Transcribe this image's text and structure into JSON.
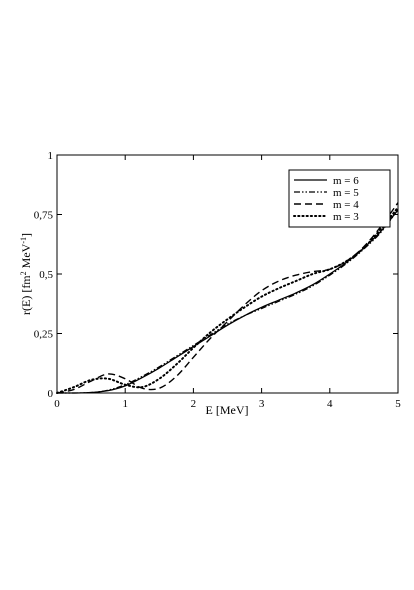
{
  "chart_data": {
    "type": "line",
    "xlabel": "E [MeV]",
    "ylabel": {
      "prefix": "r(E)  [fm",
      "sup1": "2",
      "middle": " MeV",
      "sup2": "-1",
      "suffix": "]"
    },
    "xlim": [
      0,
      5
    ],
    "ylim": [
      0,
      1
    ],
    "x_ticks": [
      0,
      1,
      2,
      3,
      4,
      5
    ],
    "x_tick_labels": [
      "0",
      "1",
      "2",
      "3",
      "4",
      "5"
    ],
    "y_ticks": [
      0,
      0.25,
      0.5,
      0.75,
      1
    ],
    "y_tick_labels": [
      "0",
      "0,25",
      "0,5",
      "0,75",
      "1"
    ],
    "grid": false,
    "legend_position": "top-right",
    "series": [
      {
        "name": "m = 6",
        "line_style": "solid",
        "x": [
          0,
          0.25,
          0.5,
          0.75,
          1.0,
          1.25,
          1.5,
          1.75,
          2.0,
          2.25,
          2.5,
          2.75,
          3.0,
          3.25,
          3.5,
          3.75,
          4.0,
          4.25,
          4.5,
          4.75,
          5.0
        ],
        "y": [
          0,
          0.0,
          0.002,
          0.01,
          0.03,
          0.065,
          0.105,
          0.15,
          0.195,
          0.24,
          0.285,
          0.325,
          0.36,
          0.39,
          0.42,
          0.455,
          0.5,
          0.55,
          0.61,
          0.68,
          0.77
        ]
      },
      {
        "name": "m = 5",
        "line_style": "dash-dot-dot",
        "x": [
          0,
          0.25,
          0.5,
          0.75,
          1.0,
          1.25,
          1.5,
          1.75,
          2.0,
          2.25,
          2.5,
          2.75,
          3.0,
          3.25,
          3.5,
          3.75,
          4.0,
          4.25,
          4.5,
          4.75,
          5.0
        ],
        "y": [
          0,
          0.0,
          0.002,
          0.012,
          0.035,
          0.07,
          0.11,
          0.155,
          0.2,
          0.245,
          0.29,
          0.325,
          0.355,
          0.385,
          0.415,
          0.45,
          0.495,
          0.545,
          0.605,
          0.675,
          0.77
        ]
      },
      {
        "name": "m = 4",
        "line_style": "dashed",
        "x": [
          0,
          0.25,
          0.5,
          0.75,
          1.0,
          1.25,
          1.5,
          1.75,
          2.0,
          2.25,
          2.5,
          2.75,
          3.0,
          3.25,
          3.5,
          3.75,
          4.0,
          4.25,
          4.5,
          4.75,
          5.0
        ],
        "y": [
          0,
          0.015,
          0.05,
          0.08,
          0.06,
          0.02,
          0.02,
          0.07,
          0.15,
          0.23,
          0.3,
          0.37,
          0.43,
          0.47,
          0.495,
          0.51,
          0.52,
          0.555,
          0.615,
          0.7,
          0.8
        ]
      },
      {
        "name": "m = 3",
        "line_style": "dotted",
        "x": [
          0,
          0.25,
          0.5,
          0.75,
          1.0,
          1.25,
          1.5,
          1.75,
          2.0,
          2.25,
          2.5,
          2.75,
          3.0,
          3.25,
          3.5,
          3.75,
          4.0,
          4.25,
          4.5,
          4.75,
          5.0
        ],
        "y": [
          0,
          0.025,
          0.055,
          0.06,
          0.035,
          0.025,
          0.06,
          0.12,
          0.19,
          0.255,
          0.31,
          0.36,
          0.405,
          0.44,
          0.47,
          0.5,
          0.52,
          0.555,
          0.61,
          0.69,
          0.78
        ]
      }
    ]
  }
}
